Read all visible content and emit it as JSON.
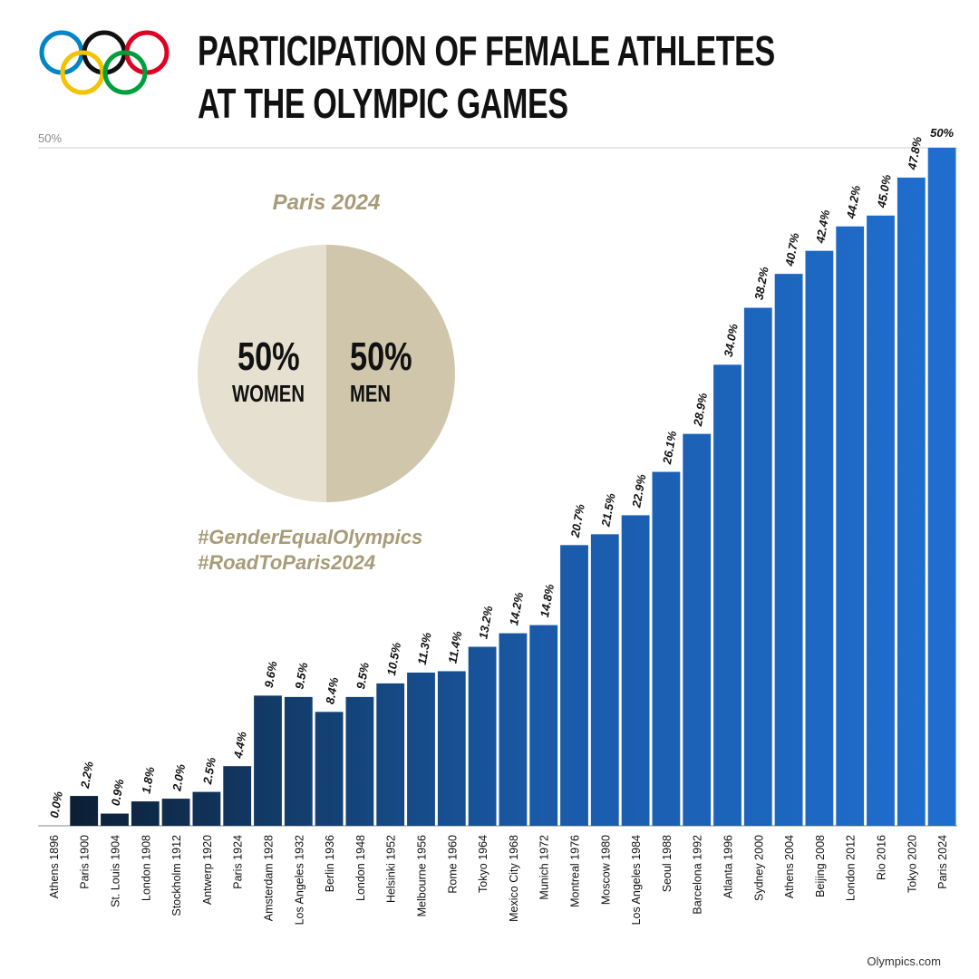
{
  "header": {
    "title_line_1": "PARTICIPATION OF FEMALE ATHLETES",
    "title_line_2": "AT THE OLYMPIC GAMES",
    "logo": "olympic-rings"
  },
  "pie": {
    "title": "Paris 2024",
    "slices": [
      {
        "label": "WOMEN",
        "percent_text": "50%",
        "value": 50,
        "color": "#e6e0d0"
      },
      {
        "label": "MEN",
        "percent_text": "50%",
        "value": 50,
        "color": "#cfc6ac"
      }
    ]
  },
  "hashtags": [
    "#GenderEqualOlympics",
    "#RoadToParis2024"
  ],
  "source": "Olympics.com",
  "colors": {
    "title": "#111111",
    "accent_gold": "#a89b78",
    "bar_dark": "#0b1a2e",
    "bar_light": "#1e6fd0",
    "gridline": "#cccccc"
  },
  "chart_data": {
    "type": "bar",
    "title": "PARTICIPATION OF FEMALE ATHLETES AT THE OLYMPIC GAMES",
    "xlabel": "",
    "ylabel": "",
    "ylim": [
      0,
      50
    ],
    "top_axis_label": "50%",
    "grid": false,
    "categories": [
      "Athens 1896",
      "Paris 1900",
      "St. Louis 1904",
      "London 1908",
      "Stockholm 1912",
      "Antwerp 1920",
      "Paris 1924",
      "Amsterdam 1928",
      "Los Angeles 1932",
      "Berlin 1936",
      "London 1948",
      "Helsinki 1952",
      "Melbourne 1956",
      "Rome 1960",
      "Tokyo 1964",
      "Mexico City 1968",
      "Munich 1972",
      "Montreal 1976",
      "Moscow 1980",
      "Los Angeles 1984",
      "Seoul 1988",
      "Barcelona 1992",
      "Atlanta 1996",
      "Sydney 2000",
      "Athens 2004",
      "Beijing 2008",
      "London 2012",
      "Rio 2016",
      "Tokyo 2020",
      "Paris 2024"
    ],
    "values": [
      0.0,
      2.2,
      0.9,
      1.8,
      2.0,
      2.5,
      4.4,
      9.6,
      9.5,
      8.4,
      9.5,
      10.5,
      11.3,
      11.4,
      13.2,
      14.2,
      14.8,
      20.7,
      21.5,
      22.9,
      26.1,
      28.9,
      34.0,
      38.2,
      40.7,
      42.4,
      44.2,
      45.0,
      47.8,
      50.0
    ],
    "value_labels": [
      "0.0%",
      "2.2%",
      "0.9%",
      "1.8%",
      "2.0%",
      "2.5%",
      "4.4%",
      "9.6%",
      "9.5%",
      "8.4%",
      "9.5%",
      "10.5%",
      "11.3%",
      "11.4%",
      "13.2%",
      "14.2%",
      "14.8%",
      "20.7%",
      "21.5%",
      "22.9%",
      "26.1%",
      "28.9%",
      "34.0%",
      "38.2%",
      "40.7%",
      "42.4%",
      "44.2%",
      "45.0%",
      "47.8%",
      "50%"
    ]
  }
}
